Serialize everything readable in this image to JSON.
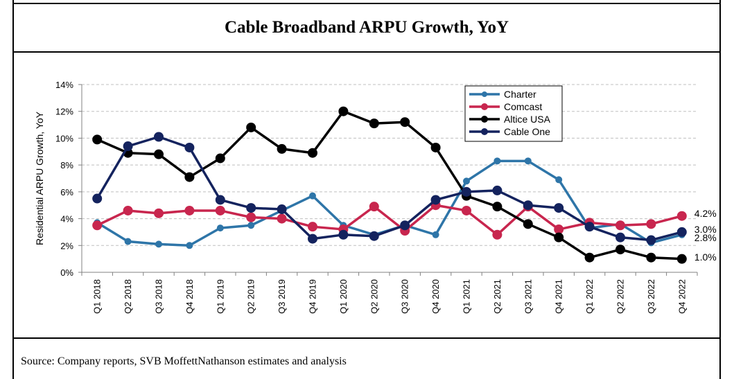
{
  "header": {
    "title": "Cable Broadband ARPU Growth, YoY"
  },
  "footer": {
    "source": "Source: Company reports, SVB MoffettNathanson estimates and analysis"
  },
  "chart_data": {
    "type": "line",
    "title": "Cable Broadband ARPU Growth, YoY",
    "xlabel": "",
    "ylabel": "Residential ARPU Growth, YoY",
    "ylim": [
      0,
      14
    ],
    "yticks": [
      "0%",
      "2%",
      "4%",
      "6%",
      "8%",
      "10%",
      "12%",
      "14%"
    ],
    "grid": "horizontal dashed",
    "legend_position": "top-right",
    "categories": [
      "Q1 2018",
      "Q2 2018",
      "Q3 2018",
      "Q4 2018",
      "Q1 2019",
      "Q2 2019",
      "Q3 2019",
      "Q4 2019",
      "Q1 2020",
      "Q2 2020",
      "Q3 2020",
      "Q4 2020",
      "Q1 2021",
      "Q2 2021",
      "Q3 2021",
      "Q4 2021",
      "Q1 2022",
      "Q2 2022",
      "Q3 2022",
      "Q4 2022"
    ],
    "series": [
      {
        "name": "Charter",
        "color": "#2E75A8",
        "marker_size": "small",
        "values": [
          3.7,
          2.3,
          2.1,
          2.0,
          3.3,
          3.5,
          4.6,
          5.7,
          3.5,
          2.8,
          3.5,
          2.8,
          6.8,
          8.3,
          8.3,
          6.9,
          3.3,
          3.6,
          2.2,
          2.8
        ],
        "end_label": "2.8%"
      },
      {
        "name": "Comcast",
        "color": "#C8264E",
        "marker_size": "large",
        "values": [
          3.5,
          4.6,
          4.4,
          4.6,
          4.6,
          4.1,
          4.0,
          3.4,
          3.2,
          4.9,
          3.1,
          5.0,
          4.6,
          2.8,
          4.9,
          3.2,
          3.7,
          3.5,
          3.6,
          4.2
        ],
        "end_label": "4.2%"
      },
      {
        "name": "Altice USA",
        "color": "#000000",
        "marker_size": "large",
        "values": [
          9.9,
          8.9,
          8.8,
          7.1,
          8.5,
          10.8,
          9.2,
          8.9,
          12.0,
          11.1,
          11.2,
          9.3,
          5.7,
          4.9,
          3.6,
          2.6,
          1.1,
          1.7,
          1.1,
          1.0
        ],
        "end_label": "1.0%"
      },
      {
        "name": "Cable One",
        "color": "#14235E",
        "marker_size": "large",
        "values": [
          5.5,
          9.4,
          10.1,
          9.3,
          5.4,
          4.8,
          4.7,
          2.5,
          2.8,
          2.7,
          3.5,
          5.4,
          6.0,
          6.1,
          5.0,
          4.8,
          3.4,
          2.6,
          2.4,
          3.0
        ],
        "end_label": "3.0%"
      }
    ]
  }
}
